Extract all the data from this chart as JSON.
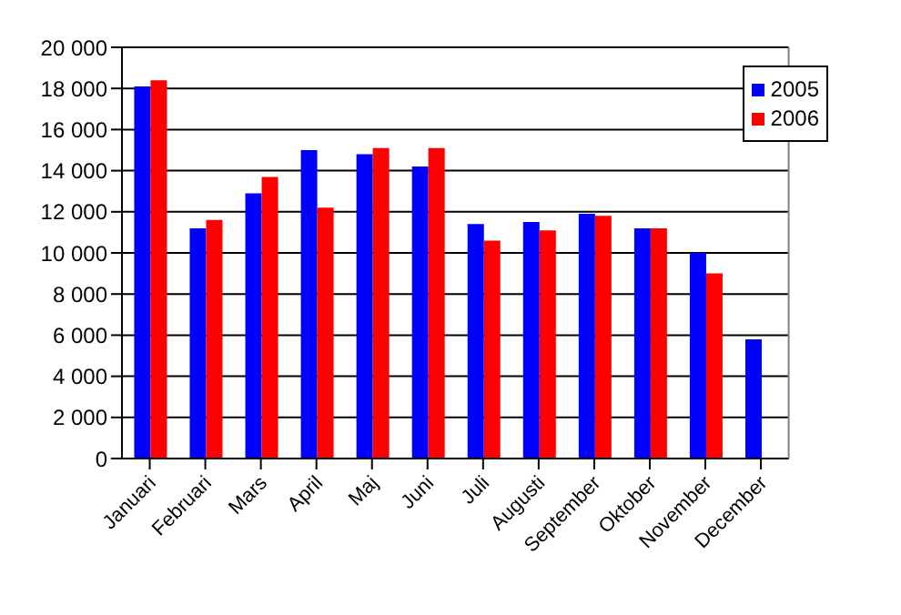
{
  "chart_data": {
    "type": "bar",
    "categories": [
      "Januari",
      "Februari",
      "Mars",
      "April",
      "Maj",
      "Juni",
      "Juli",
      "Augusti",
      "September",
      "Oktober",
      "November",
      "December"
    ],
    "series": [
      {
        "name": "2005",
        "color": "#0000ff",
        "values": [
          18100,
          11200,
          12900,
          15000,
          14800,
          14200,
          11400,
          11500,
          11900,
          11200,
          10000,
          5800
        ]
      },
      {
        "name": "2006",
        "color": "#ff0000",
        "values": [
          18400,
          11600,
          13700,
          12200,
          15100,
          15100,
          10600,
          11100,
          11800,
          11200,
          9000,
          null
        ]
      }
    ],
    "ylim": [
      0,
      20000
    ],
    "yticks": [
      0,
      {
        "value": 2000,
        "label": "2 000"
      },
      {
        "value": 4000,
        "label": "4 000"
      },
      {
        "value": 6000,
        "label": "6 000"
      },
      {
        "value": 8000,
        "label": "8 000"
      },
      {
        "value": 10000,
        "label": "10 000"
      },
      {
        "value": 12000,
        "label": "12 000"
      },
      {
        "value": 14000,
        "label": "14 000"
      },
      {
        "value": 16000,
        "label": "16 000"
      },
      {
        "value": 18000,
        "label": "18 000"
      },
      {
        "value": 20000,
        "label": "20 000"
      }
    ],
    "grid": "y",
    "legend": "top right"
  }
}
